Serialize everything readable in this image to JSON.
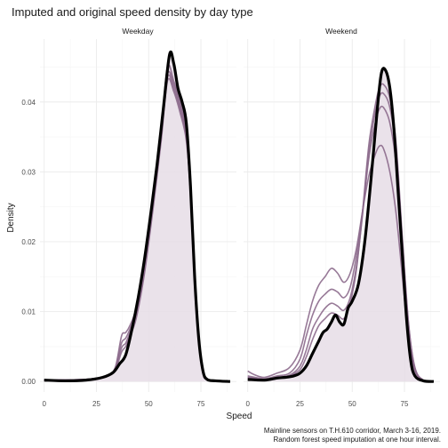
{
  "chart_data": {
    "type": "area",
    "title": "Imputed and original speed density by day type",
    "xlabel": "Speed",
    "ylabel": "Density",
    "xlim": [
      -2,
      92
    ],
    "ylim": [
      -0.0015,
      0.049
    ],
    "x_ticks": [
      0,
      25,
      50,
      75
    ],
    "y_ticks": [
      0.0,
      0.01,
      0.02,
      0.03,
      0.04
    ],
    "x_tick_labels": [
      "0",
      "25",
      "50",
      "75"
    ],
    "y_tick_labels": [
      "0.00",
      "0.01",
      "0.02",
      "0.03",
      "0.04"
    ],
    "grid": true,
    "legend": "none",
    "colors": {
      "imputed": "#8c6a8c",
      "original": "#000000",
      "fill": "#e6dde6"
    },
    "caption_lines": [
      "Mainline sensors on T.H.610 corridor, March 3-16, 2019.",
      "Random forest speed imputation at one hour interval."
    ],
    "panels": [
      {
        "label": "Weekday",
        "original": [
          [
            0,
            0.0002
          ],
          [
            10,
            0.0001
          ],
          [
            20,
            0.0002
          ],
          [
            28,
            0.0006
          ],
          [
            33,
            0.0013
          ],
          [
            36,
            0.0025
          ],
          [
            39,
            0.0038
          ],
          [
            42,
            0.0075
          ],
          [
            45,
            0.012
          ],
          [
            48,
            0.0175
          ],
          [
            51,
            0.024
          ],
          [
            54,
            0.031
          ],
          [
            57,
            0.039
          ],
          [
            60,
            0.0468
          ],
          [
            62,
            0.0455
          ],
          [
            64,
            0.042
          ],
          [
            66,
            0.04
          ],
          [
            68,
            0.037
          ],
          [
            70,
            0.028
          ],
          [
            72,
            0.015
          ],
          [
            74,
            0.006
          ],
          [
            76,
            0.0015
          ],
          [
            78,
            0.0003
          ],
          [
            82,
            0.0001
          ],
          [
            89,
            0.0
          ]
        ],
        "imputed": [
          [
            [
              0,
              0.0002
            ],
            [
              20,
              0.0003
            ],
            [
              30,
              0.0008
            ],
            [
              34,
              0.002
            ],
            [
              37,
              0.0065
            ],
            [
              39,
              0.007
            ],
            [
              41,
              0.008
            ],
            [
              44,
              0.0105
            ],
            [
              48,
              0.017
            ],
            [
              52,
              0.026
            ],
            [
              56,
              0.036
            ],
            [
              59,
              0.045
            ],
            [
              62,
              0.043
            ],
            [
              65,
              0.04
            ],
            [
              68,
              0.036
            ],
            [
              70,
              0.027
            ],
            [
              72,
              0.014
            ],
            [
              74,
              0.006
            ],
            [
              76,
              0.0015
            ],
            [
              78,
              0.0003
            ],
            [
              89,
              0.0
            ]
          ],
          [
            [
              0,
              0.0002
            ],
            [
              20,
              0.0003
            ],
            [
              30,
              0.0008
            ],
            [
              34,
              0.002
            ],
            [
              37,
              0.0055
            ],
            [
              39,
              0.0062
            ],
            [
              41,
              0.0075
            ],
            [
              44,
              0.01
            ],
            [
              48,
              0.0165
            ],
            [
              52,
              0.0255
            ],
            [
              56,
              0.0355
            ],
            [
              59,
              0.044
            ],
            [
              62,
              0.0425
            ],
            [
              65,
              0.0395
            ],
            [
              68,
              0.0355
            ],
            [
              70,
              0.027
            ],
            [
              72,
              0.014
            ],
            [
              74,
              0.006
            ],
            [
              76,
              0.0015
            ],
            [
              78,
              0.0003
            ],
            [
              89,
              0.0
            ]
          ],
          [
            [
              0,
              0.0002
            ],
            [
              20,
              0.0003
            ],
            [
              30,
              0.0008
            ],
            [
              34,
              0.0018
            ],
            [
              37,
              0.0048
            ],
            [
              39,
              0.0055
            ],
            [
              41,
              0.007
            ],
            [
              44,
              0.0095
            ],
            [
              48,
              0.016
            ],
            [
              52,
              0.025
            ],
            [
              56,
              0.035
            ],
            [
              59,
              0.0435
            ],
            [
              62,
              0.042
            ],
            [
              65,
              0.039
            ],
            [
              68,
              0.035
            ],
            [
              70,
              0.027
            ],
            [
              72,
              0.014
            ],
            [
              74,
              0.006
            ],
            [
              76,
              0.0015
            ],
            [
              78,
              0.0003
            ],
            [
              89,
              0.0
            ]
          ],
          [
            [
              0,
              0.0002
            ],
            [
              20,
              0.0003
            ],
            [
              30,
              0.0008
            ],
            [
              34,
              0.0016
            ],
            [
              37,
              0.0042
            ],
            [
              39,
              0.005
            ],
            [
              41,
              0.0065
            ],
            [
              44,
              0.009
            ],
            [
              48,
              0.0155
            ],
            [
              52,
              0.0245
            ],
            [
              56,
              0.0345
            ],
            [
              59,
              0.043
            ],
            [
              62,
              0.0415
            ],
            [
              65,
              0.0385
            ],
            [
              68,
              0.0345
            ],
            [
              70,
              0.027
            ],
            [
              72,
              0.014
            ],
            [
              74,
              0.006
            ],
            [
              76,
              0.0015
            ],
            [
              78,
              0.0003
            ],
            [
              89,
              0.0
            ]
          ]
        ]
      },
      {
        "label": "Weekend",
        "original": [
          [
            0,
            0.0003
          ],
          [
            8,
            0.0002
          ],
          [
            14,
            0.0005
          ],
          [
            18,
            0.0006
          ],
          [
            22,
            0.0008
          ],
          [
            25,
            0.0012
          ],
          [
            28,
            0.0022
          ],
          [
            31,
            0.004
          ],
          [
            34,
            0.0058
          ],
          [
            36,
            0.007
          ],
          [
            38,
            0.0075
          ],
          [
            40,
            0.0085
          ],
          [
            42,
            0.0095
          ],
          [
            44,
            0.0085
          ],
          [
            46,
            0.0082
          ],
          [
            48,
            0.0105
          ],
          [
            50,
            0.0115
          ],
          [
            53,
            0.014
          ],
          [
            56,
            0.02
          ],
          [
            59,
            0.029
          ],
          [
            62,
            0.039
          ],
          [
            64,
            0.0442
          ],
          [
            66,
            0.0445
          ],
          [
            68,
            0.042
          ],
          [
            70,
            0.036
          ],
          [
            72,
            0.027
          ],
          [
            74,
            0.018
          ],
          [
            76,
            0.009
          ],
          [
            78,
            0.003
          ],
          [
            80,
            0.0008
          ],
          [
            84,
            0.0001
          ],
          [
            89,
            0.0
          ]
        ],
        "imputed": [
          [
            [
              0,
              0.0015
            ],
            [
              3,
              0.001
            ],
            [
              8,
              0.0006
            ],
            [
              14,
              0.0012
            ],
            [
              20,
              0.002
            ],
            [
              25,
              0.0045
            ],
            [
              28,
              0.008
            ],
            [
              31,
              0.0115
            ],
            [
              34,
              0.0138
            ],
            [
              37,
              0.015
            ],
            [
              40,
              0.0162
            ],
            [
              43,
              0.0155
            ],
            [
              46,
              0.0142
            ],
            [
              49,
              0.0155
            ],
            [
              52,
              0.019
            ],
            [
              55,
              0.0245
            ],
            [
              58,
              0.0295
            ],
            [
              61,
              0.0325
            ],
            [
              63,
              0.0337
            ],
            [
              65,
              0.0333
            ],
            [
              68,
              0.03
            ],
            [
              71,
              0.024
            ],
            [
              74,
              0.015
            ],
            [
              77,
              0.006
            ],
            [
              80,
              0.0015
            ],
            [
              84,
              0.0002
            ],
            [
              89,
              0.0
            ]
          ],
          [
            [
              0,
              0.0008
            ],
            [
              8,
              0.0004
            ],
            [
              14,
              0.0008
            ],
            [
              20,
              0.0012
            ],
            [
              25,
              0.0032
            ],
            [
              28,
              0.0065
            ],
            [
              31,
              0.0095
            ],
            [
              34,
              0.0115
            ],
            [
              37,
              0.0125
            ],
            [
              40,
              0.0132
            ],
            [
              43,
              0.0128
            ],
            [
              46,
              0.012
            ],
            [
              49,
              0.0135
            ],
            [
              52,
              0.018
            ],
            [
              55,
              0.0245
            ],
            [
              58,
              0.032
            ],
            [
              61,
              0.037
            ],
            [
              63,
              0.039
            ],
            [
              65,
              0.0392
            ],
            [
              68,
              0.037
            ],
            [
              71,
              0.031
            ],
            [
              74,
              0.019
            ],
            [
              77,
              0.0075
            ],
            [
              80,
              0.0018
            ],
            [
              84,
              0.0002
            ],
            [
              89,
              0.0
            ]
          ],
          [
            [
              0,
              0.0006
            ],
            [
              8,
              0.0003
            ],
            [
              14,
              0.0006
            ],
            [
              20,
              0.0009
            ],
            [
              25,
              0.0022
            ],
            [
              28,
              0.0045
            ],
            [
              31,
              0.0075
            ],
            [
              34,
              0.0092
            ],
            [
              37,
              0.0105
            ],
            [
              40,
              0.0112
            ],
            [
              43,
              0.0108
            ],
            [
              46,
              0.0102
            ],
            [
              49,
              0.012
            ],
            [
              52,
              0.0165
            ],
            [
              55,
              0.024
            ],
            [
              58,
              0.033
            ],
            [
              61,
              0.0385
            ],
            [
              63,
              0.0408
            ],
            [
              65,
              0.0412
            ],
            [
              68,
              0.0392
            ],
            [
              71,
              0.033
            ],
            [
              74,
              0.02
            ],
            [
              77,
              0.008
            ],
            [
              80,
              0.0019
            ],
            [
              84,
              0.0002
            ],
            [
              89,
              0.0
            ]
          ],
          [
            [
              0,
              0.0005
            ],
            [
              8,
              0.0003
            ],
            [
              14,
              0.0005
            ],
            [
              20,
              0.0008
            ],
            [
              25,
              0.0017
            ],
            [
              28,
              0.0035
            ],
            [
              31,
              0.006
            ],
            [
              34,
              0.008
            ],
            [
              37,
              0.009
            ],
            [
              40,
              0.0098
            ],
            [
              43,
              0.0095
            ],
            [
              46,
              0.009
            ],
            [
              49,
              0.0112
            ],
            [
              52,
              0.016
            ],
            [
              55,
              0.0245
            ],
            [
              58,
              0.034
            ],
            [
              61,
              0.0395
            ],
            [
              63,
              0.042
            ],
            [
              65,
              0.0425
            ],
            [
              68,
              0.0405
            ],
            [
              71,
              0.034
            ],
            [
              74,
              0.0205
            ],
            [
              77,
              0.0082
            ],
            [
              80,
              0.002
            ],
            [
              84,
              0.0002
            ],
            [
              89,
              0.0
            ]
          ]
        ]
      }
    ]
  }
}
